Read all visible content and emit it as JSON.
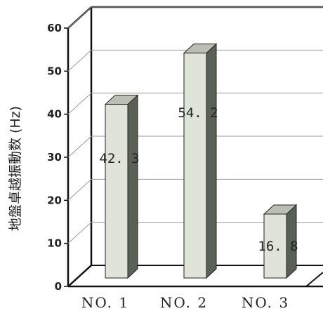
{
  "chart_data": {
    "type": "bar",
    "title": "",
    "xlabel": "",
    "ylabel": "地盤卓越振動数 (Hz)",
    "categories": [
      "NO. 1",
      "NO. 2",
      "NO. 3"
    ],
    "values": [
      42.3,
      54.2,
      16.8
    ],
    "data_labels": [
      "42. 3",
      "54. 2",
      "16. 8"
    ],
    "ylim": [
      0,
      60
    ],
    "yticks": [
      0,
      10,
      20,
      30,
      40,
      50,
      60
    ],
    "grid": true,
    "style": "3d",
    "colors": {
      "bar_front": "#dfe3d8",
      "bar_side": "#5a5f58",
      "bar_top": "#b9bfb2",
      "axis": "#111111",
      "grid": "#9a9a9a"
    }
  }
}
